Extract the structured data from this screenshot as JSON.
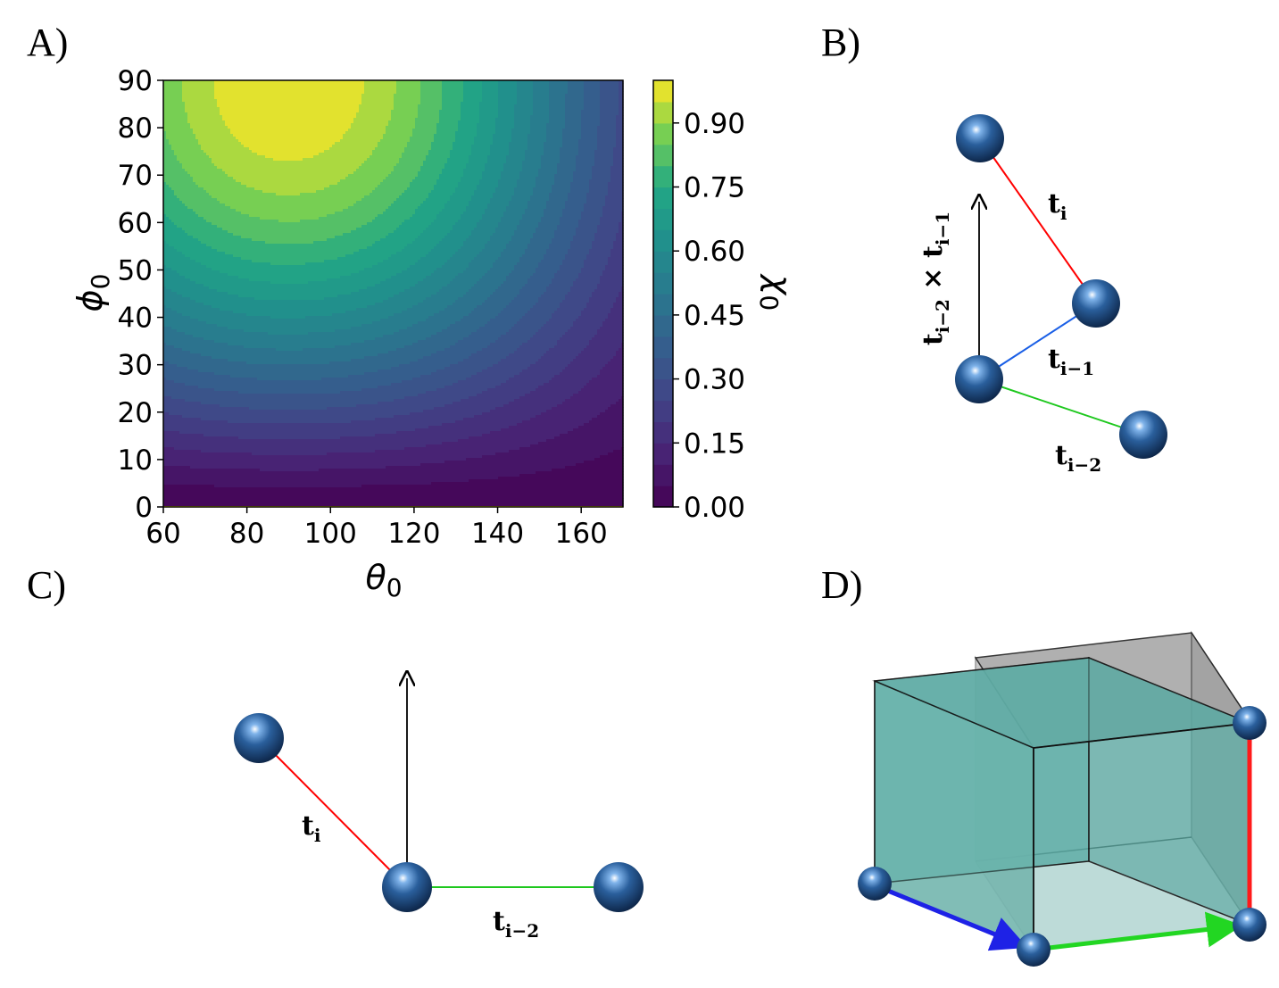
{
  "panels": {
    "a": "A)",
    "b": "B)",
    "c": "C)",
    "d": "D)"
  },
  "chart_data": {
    "type": "heatmap",
    "subtype": "filled-contour",
    "xlabel_symbol": "θ",
    "xlabel_sub": "0",
    "ylabel_symbol": "ϕ",
    "ylabel_sub": "0",
    "colorbar_label_symbol": "χ",
    "colorbar_label_sub": "0",
    "xlim": [
      60,
      170
    ],
    "ylim": [
      0,
      90
    ],
    "x_ticks": [
      "60",
      "80",
      "100",
      "120",
      "140",
      "160"
    ],
    "y_ticks": [
      "0",
      "10",
      "20",
      "30",
      "40",
      "50",
      "60",
      "70",
      "80",
      "90"
    ],
    "colorbar_ticks": [
      "0.00",
      "0.15",
      "0.30",
      "0.45",
      "0.60",
      "0.75",
      "0.90"
    ],
    "colorbar_range": [
      0,
      1.0
    ],
    "contour_levels": 20,
    "colormap": "viridis",
    "peak": {
      "theta": 90,
      "phi": 90,
      "value": 1.0
    },
    "grid": false
  },
  "vectors": {
    "t_i": {
      "label": "t",
      "sub": "i"
    },
    "t_i1": {
      "label": "t",
      "sub": "i−1"
    },
    "t_i2": {
      "label": "t",
      "sub": "i−2"
    },
    "cross": {
      "a": "t",
      "a_sub": "i−2",
      "op": " × ",
      "b": "t",
      "b_sub": "i−1"
    }
  },
  "colors": {
    "t_i": "#ff0000",
    "t_i1": "#1a5fe6",
    "t_i2": "#1ec81e",
    "cube_face": "#5aaaa3",
    "shadow_cube": "#a0a0a0"
  }
}
